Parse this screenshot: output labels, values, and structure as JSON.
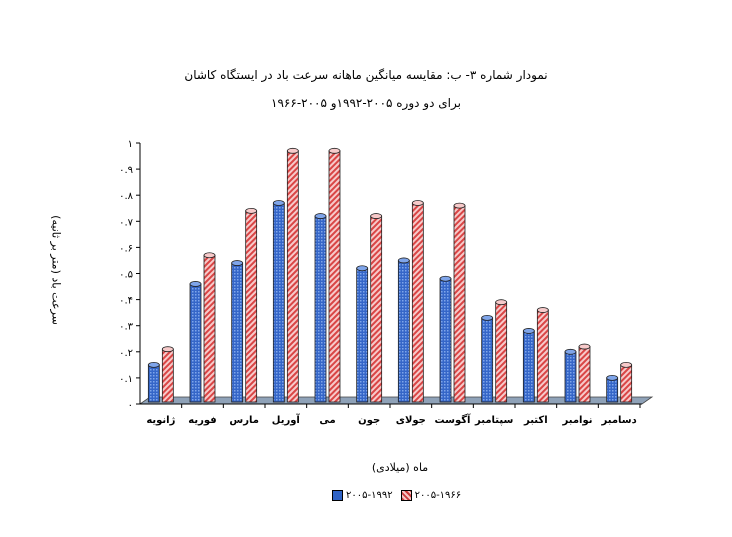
{
  "colors": {
    "series1": "#3b6fd0",
    "series2": "#e45a5a",
    "floor": "#8fa2b8"
  },
  "chart_data": {
    "type": "bar",
    "title": "نمودار شماره ۳- ب: مقایسه میانگین ماهانه سرعت باد در ایستگاه کاشان",
    "subtitle": "برای دو دوره ۲۰۰۵-۱۹۹۲و ۲۰۰۵-۱۹۶۶",
    "xlabel": "ماه (میلادی)",
    "ylabel": "سرعت باد (متر بر ثانیه)",
    "ylim": [
      0,
      1
    ],
    "yticks": [
      "۰",
      "۰.۱",
      "۰.۲",
      "۰.۳",
      "۰.۴",
      "۰.۵",
      "۰.۶",
      "۰.۷",
      "۰.۸",
      "۰.۹",
      "۱"
    ],
    "categories": [
      "ژانویه",
      "فوریه",
      "مارس",
      "آوریل",
      "می",
      "جون",
      "جولای",
      "آگوست",
      "سپتامبر",
      "اکتبر",
      "نوامبر",
      "دسامبر"
    ],
    "series": [
      {
        "name": "۲۰۰۵-۱۹۹۲",
        "values": [
          0.15,
          0.46,
          0.54,
          0.77,
          0.72,
          0.52,
          0.55,
          0.48,
          0.33,
          0.28,
          0.2,
          0.1
        ]
      },
      {
        "name": "۲۰۰۵-۱۹۶۶",
        "values": [
          0.21,
          0.57,
          0.74,
          0.97,
          0.97,
          0.72,
          0.77,
          0.76,
          0.39,
          0.36,
          0.22,
          0.15
        ]
      }
    ],
    "grid": false,
    "legend": "bottom"
  }
}
